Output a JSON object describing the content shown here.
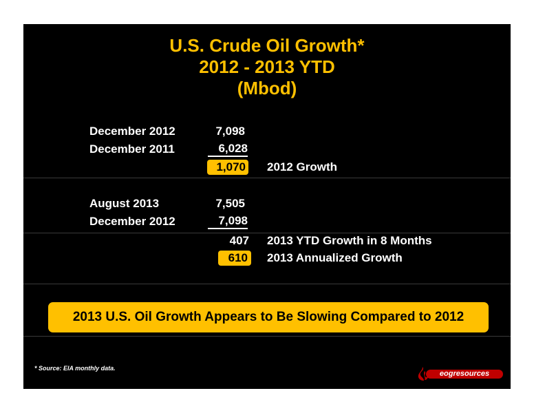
{
  "title": {
    "line1": "U.S. Crude Oil Growth*",
    "line2": "2012 - 2013 YTD",
    "line3": "(Mbod)"
  },
  "table_2012": {
    "row1": {
      "label": "December 2012",
      "value": "7,098"
    },
    "row2": {
      "label": "December 2011",
      "value": "6,028"
    },
    "result": {
      "value": "1,070",
      "description": "2012 Growth"
    }
  },
  "table_2013": {
    "row1": {
      "label": "August 2013",
      "value": "7,505"
    },
    "row2": {
      "label": "December 2012",
      "value": "7,098"
    },
    "result1": {
      "value": "407",
      "description": "2013 YTD Growth in 8 Months"
    },
    "result2": {
      "value": "610",
      "description": "2013 Annualized Growth"
    }
  },
  "banner": "2013 U.S. Oil Growth Appears to Be Slowing Compared to 2012",
  "footnote": "* Source: EIA monthly data.",
  "logo": {
    "text": "eogresources",
    "icon": "flame-icon"
  },
  "colors": {
    "accent": "#ffc000",
    "background": "#000000",
    "logo": "#c00000"
  }
}
